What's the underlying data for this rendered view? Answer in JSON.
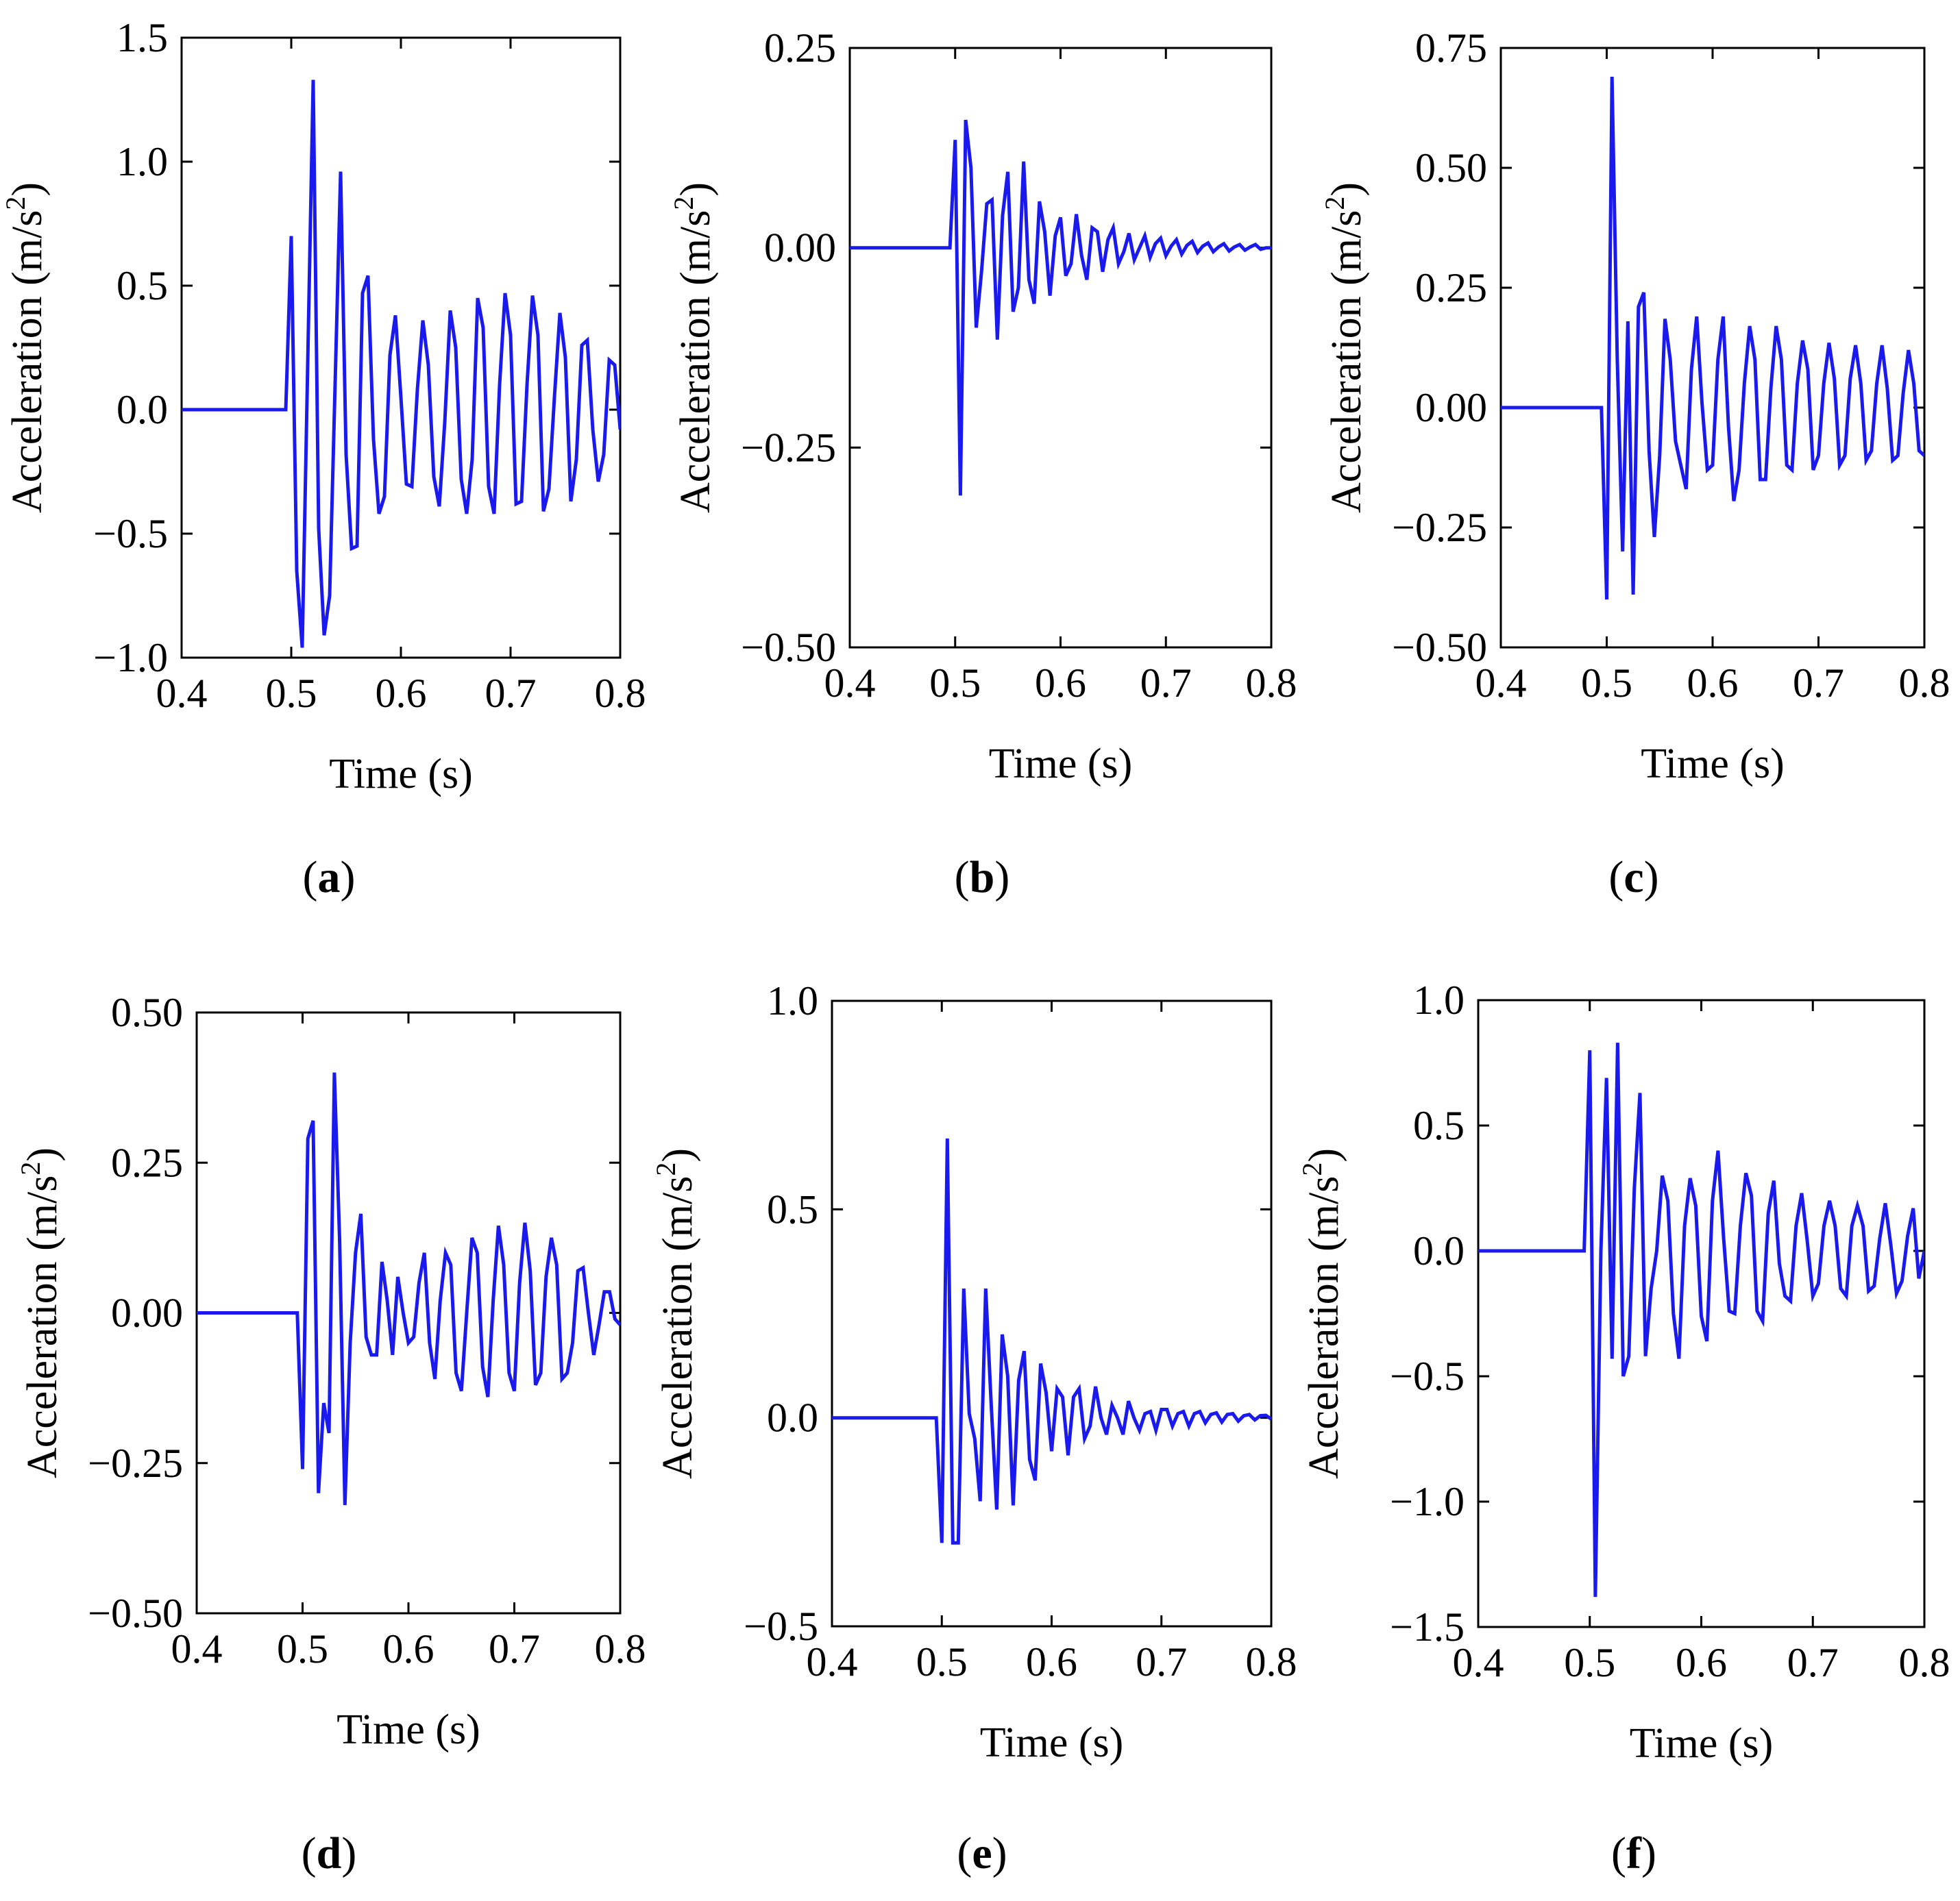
{
  "figure": {
    "line_color": "#1a1aee",
    "axis_color": "#000000",
    "background": "#ffffff"
  },
  "chart_data": [
    {
      "id": "a",
      "type": "line",
      "panel_label": "a",
      "xlabel": "Time (s)",
      "ylabel": "Acceleration (m/s",
      "ylabel_sup": "2",
      "ylabel_tail": ")",
      "xlim": [
        0.4,
        0.8
      ],
      "ylim": [
        -1.0,
        1.5
      ],
      "xticks": [
        0.4,
        0.5,
        0.6,
        0.7,
        0.8
      ],
      "xtick_labels": [
        "0.4",
        "0.5",
        "0.6",
        "0.7",
        "0.8"
      ],
      "yticks": [
        -1.0,
        -0.5,
        0.0,
        0.5,
        1.0,
        1.5
      ],
      "ytick_labels": [
        "−1.0",
        "−0.5",
        "0.0",
        "0.5",
        "1.0",
        "1.5"
      ],
      "series": [
        {
          "name": "acceleration",
          "x": [
            0.4,
            0.495,
            0.5,
            0.505,
            0.51,
            0.52,
            0.525,
            0.53,
            0.535,
            0.545,
            0.55,
            0.555,
            0.56,
            0.565,
            0.57,
            0.575,
            0.58,
            0.585,
            0.59,
            0.595,
            0.6,
            0.605,
            0.61,
            0.615,
            0.62,
            0.625,
            0.63,
            0.635,
            0.64,
            0.645,
            0.65,
            0.655,
            0.66,
            0.665,
            0.67,
            0.675,
            0.68,
            0.685,
            0.69,
            0.695,
            0.7,
            0.705,
            0.71,
            0.715,
            0.72,
            0.725,
            0.73,
            0.735,
            0.74,
            0.745,
            0.75,
            0.755,
            0.76,
            0.765,
            0.77,
            0.775,
            0.78,
            0.785,
            0.79,
            0.795,
            0.8
          ],
          "y": [
            0.0,
            0.0,
            0.7,
            -0.65,
            -0.96,
            1.33,
            -0.48,
            -0.91,
            -0.75,
            0.96,
            -0.18,
            -0.56,
            -0.55,
            0.47,
            0.54,
            -0.12,
            -0.42,
            -0.35,
            0.22,
            0.38,
            0.05,
            -0.3,
            -0.31,
            0.08,
            0.36,
            0.18,
            -0.27,
            -0.39,
            -0.05,
            0.4,
            0.25,
            -0.28,
            -0.42,
            -0.2,
            0.45,
            0.33,
            -0.31,
            -0.42,
            0.1,
            0.47,
            0.3,
            -0.38,
            -0.37,
            0.1,
            0.46,
            0.3,
            -0.41,
            -0.32,
            0.05,
            0.39,
            0.21,
            -0.37,
            -0.2,
            0.26,
            0.28,
            -0.08,
            -0.29,
            -0.18,
            0.2,
            0.18,
            -0.08
          ]
        }
      ]
    },
    {
      "id": "b",
      "type": "line",
      "panel_label": "b",
      "xlabel": "Time (s)",
      "ylabel": "Acceleration (m/s",
      "ylabel_sup": "2",
      "ylabel_tail": ")",
      "xlim": [
        0.4,
        0.8
      ],
      "ylim": [
        -0.5,
        0.25
      ],
      "xticks": [
        0.4,
        0.5,
        0.6,
        0.7,
        0.8
      ],
      "xtick_labels": [
        "0.4",
        "0.5",
        "0.6",
        "0.7",
        "0.8"
      ],
      "yticks": [
        -0.5,
        -0.25,
        0.0,
        0.25
      ],
      "ytick_labels": [
        "−0.50",
        "−0.25",
        "0.00",
        "0.25"
      ],
      "series": [
        {
          "name": "acceleration",
          "x": [
            0.4,
            0.495,
            0.5,
            0.505,
            0.51,
            0.515,
            0.52,
            0.525,
            0.53,
            0.535,
            0.54,
            0.545,
            0.55,
            0.555,
            0.56,
            0.565,
            0.57,
            0.575,
            0.58,
            0.585,
            0.59,
            0.595,
            0.6,
            0.605,
            0.61,
            0.615,
            0.62,
            0.625,
            0.63,
            0.635,
            0.64,
            0.645,
            0.65,
            0.655,
            0.66,
            0.665,
            0.67,
            0.675,
            0.68,
            0.685,
            0.69,
            0.695,
            0.7,
            0.705,
            0.71,
            0.715,
            0.72,
            0.725,
            0.73,
            0.735,
            0.74,
            0.745,
            0.75,
            0.755,
            0.76,
            0.765,
            0.77,
            0.775,
            0.78,
            0.785,
            0.79,
            0.795,
            0.8
          ],
          "y": [
            0.0,
            0.0,
            0.135,
            -0.31,
            0.16,
            0.1,
            -0.1,
            -0.03,
            0.055,
            0.06,
            -0.115,
            0.04,
            0.095,
            -0.08,
            -0.05,
            0.108,
            -0.04,
            -0.07,
            0.058,
            0.02,
            -0.06,
            0.015,
            0.038,
            -0.035,
            -0.02,
            0.042,
            -0.01,
            -0.04,
            0.025,
            0.02,
            -0.03,
            0.01,
            0.025,
            -0.02,
            -0.005,
            0.018,
            -0.015,
            0.0,
            0.015,
            -0.012,
            0.005,
            0.012,
            -0.01,
            0.002,
            0.01,
            -0.008,
            0.003,
            0.008,
            -0.006,
            0.002,
            0.006,
            -0.005,
            0.001,
            0.005,
            -0.004,
            0.001,
            0.004,
            -0.003,
            0.001,
            0.004,
            -0.002,
            0.0,
            0.0
          ]
        }
      ]
    },
    {
      "id": "c",
      "type": "line",
      "panel_label": "c",
      "xlabel": "Time (s)",
      "ylabel": "Acceleration (m/s",
      "ylabel_sup": "2",
      "ylabel_tail": ")",
      "xlim": [
        0.4,
        0.8
      ],
      "ylim": [
        -0.5,
        0.75
      ],
      "xticks": [
        0.4,
        0.5,
        0.6,
        0.7,
        0.8
      ],
      "xtick_labels": [
        "0.4",
        "0.5",
        "0.6",
        "0.7",
        "0.8"
      ],
      "yticks": [
        -0.5,
        -0.25,
        0.0,
        0.25,
        0.5,
        0.75
      ],
      "ytick_labels": [
        "−0.50",
        "−0.25",
        "0.00",
        "0.25",
        "0.50",
        "0.75"
      ],
      "series": [
        {
          "name": "acceleration",
          "x": [
            0.4,
            0.495,
            0.5,
            0.505,
            0.51,
            0.515,
            0.52,
            0.525,
            0.53,
            0.535,
            0.54,
            0.545,
            0.55,
            0.555,
            0.56,
            0.565,
            0.57,
            0.575,
            0.58,
            0.585,
            0.59,
            0.595,
            0.6,
            0.605,
            0.61,
            0.615,
            0.62,
            0.625,
            0.63,
            0.635,
            0.64,
            0.645,
            0.65,
            0.655,
            0.66,
            0.665,
            0.67,
            0.675,
            0.68,
            0.685,
            0.69,
            0.695,
            0.7,
            0.705,
            0.71,
            0.715,
            0.72,
            0.725,
            0.73,
            0.735,
            0.74,
            0.745,
            0.75,
            0.755,
            0.76,
            0.765,
            0.77,
            0.775,
            0.78,
            0.785,
            0.79,
            0.795,
            0.8
          ],
          "y": [
            0.0,
            0.0,
            -0.4,
            0.69,
            0.1,
            -0.3,
            0.18,
            -0.39,
            0.21,
            0.24,
            -0.09,
            -0.27,
            -0.1,
            0.185,
            0.1,
            -0.07,
            -0.12,
            -0.17,
            0.08,
            0.19,
            0.01,
            -0.13,
            -0.12,
            0.1,
            0.19,
            -0.04,
            -0.195,
            -0.13,
            0.05,
            0.17,
            0.1,
            -0.15,
            -0.15,
            0.04,
            0.17,
            0.1,
            -0.12,
            -0.13,
            0.05,
            0.14,
            0.08,
            -0.13,
            -0.1,
            0.05,
            0.135,
            0.06,
            -0.12,
            -0.1,
            0.06,
            0.13,
            0.05,
            -0.11,
            -0.09,
            0.05,
            0.13,
            0.04,
            -0.11,
            -0.1,
            0.03,
            0.12,
            0.05,
            -0.09,
            -0.1
          ]
        }
      ]
    },
    {
      "id": "d",
      "type": "line",
      "panel_label": "d",
      "xlabel": "Time (s)",
      "ylabel": "Acceleration (m/s",
      "ylabel_sup": "2",
      "ylabel_tail": ")",
      "xlim": [
        0.4,
        0.8
      ],
      "ylim": [
        -0.5,
        0.5
      ],
      "xticks": [
        0.4,
        0.5,
        0.6,
        0.7,
        0.8
      ],
      "xtick_labels": [
        "0.4",
        "0.5",
        "0.6",
        "0.7",
        "0.8"
      ],
      "yticks": [
        -0.5,
        -0.25,
        0.0,
        0.25,
        0.5
      ],
      "ytick_labels": [
        "−0.50",
        "−0.25",
        "0.00",
        "0.25",
        "0.50"
      ],
      "series": [
        {
          "name": "acceleration",
          "x": [
            0.4,
            0.495,
            0.5,
            0.505,
            0.51,
            0.515,
            0.52,
            0.525,
            0.53,
            0.535,
            0.54,
            0.545,
            0.55,
            0.555,
            0.56,
            0.565,
            0.57,
            0.575,
            0.58,
            0.585,
            0.59,
            0.595,
            0.6,
            0.605,
            0.61,
            0.615,
            0.62,
            0.625,
            0.63,
            0.635,
            0.64,
            0.645,
            0.65,
            0.655,
            0.66,
            0.665,
            0.67,
            0.675,
            0.68,
            0.685,
            0.69,
            0.695,
            0.7,
            0.705,
            0.71,
            0.715,
            0.72,
            0.725,
            0.73,
            0.735,
            0.74,
            0.745,
            0.75,
            0.755,
            0.76,
            0.765,
            0.77,
            0.775,
            0.78,
            0.785,
            0.79,
            0.795,
            0.8
          ],
          "y": [
            0.0,
            0.0,
            -0.26,
            0.29,
            0.32,
            -0.3,
            -0.15,
            -0.2,
            0.4,
            0.12,
            -0.32,
            -0.05,
            0.1,
            0.165,
            -0.04,
            -0.07,
            -0.07,
            0.085,
            0.02,
            -0.07,
            0.06,
            0.0,
            -0.05,
            -0.04,
            0.05,
            0.1,
            -0.05,
            -0.11,
            0.02,
            0.1,
            0.08,
            -0.1,
            -0.13,
            0.0,
            0.125,
            0.1,
            -0.09,
            -0.14,
            0.02,
            0.145,
            0.08,
            -0.1,
            -0.13,
            0.05,
            0.15,
            0.07,
            -0.12,
            -0.1,
            0.06,
            0.125,
            0.08,
            -0.11,
            -0.1,
            -0.05,
            0.07,
            0.075,
            0.0,
            -0.07,
            -0.02,
            0.035,
            0.035,
            -0.01,
            -0.02
          ]
        }
      ]
    },
    {
      "id": "e",
      "type": "line",
      "panel_label": "e",
      "xlabel": "Time (s)",
      "ylabel": "Acceleration (m/s",
      "ylabel_sup": "2",
      "ylabel_tail": ")",
      "xlim": [
        0.4,
        0.8
      ],
      "ylim": [
        -0.5,
        1.0
      ],
      "xticks": [
        0.4,
        0.5,
        0.6,
        0.7,
        0.8
      ],
      "xtick_labels": [
        "0.4",
        "0.5",
        "0.6",
        "0.7",
        "0.8"
      ],
      "yticks": [
        -0.5,
        0.0,
        0.5,
        1.0
      ],
      "ytick_labels": [
        "−0.5",
        "0.0",
        "0.5",
        "1.0"
      ],
      "series": [
        {
          "name": "acceleration",
          "x": [
            0.4,
            0.495,
            0.5,
            0.505,
            0.51,
            0.515,
            0.52,
            0.525,
            0.53,
            0.535,
            0.54,
            0.545,
            0.55,
            0.555,
            0.56,
            0.565,
            0.57,
            0.575,
            0.58,
            0.585,
            0.59,
            0.595,
            0.6,
            0.605,
            0.61,
            0.615,
            0.62,
            0.625,
            0.63,
            0.635,
            0.64,
            0.645,
            0.65,
            0.655,
            0.66,
            0.665,
            0.67,
            0.675,
            0.68,
            0.685,
            0.69,
            0.695,
            0.7,
            0.705,
            0.71,
            0.715,
            0.72,
            0.725,
            0.73,
            0.735,
            0.74,
            0.745,
            0.75,
            0.755,
            0.76,
            0.765,
            0.77,
            0.775,
            0.78,
            0.785,
            0.79,
            0.795,
            0.8
          ],
          "y": [
            0.0,
            0.0,
            -0.3,
            0.67,
            -0.3,
            -0.3,
            0.31,
            0.01,
            -0.05,
            -0.2,
            0.31,
            0.03,
            -0.22,
            0.2,
            0.1,
            -0.21,
            0.09,
            0.16,
            -0.1,
            -0.15,
            0.13,
            0.06,
            -0.08,
            0.07,
            0.05,
            -0.09,
            0.05,
            0.07,
            -0.05,
            -0.02,
            0.075,
            0.0,
            -0.04,
            0.03,
            0.0,
            -0.04,
            0.04,
            0.0,
            -0.03,
            0.01,
            0.015,
            -0.03,
            0.02,
            0.02,
            -0.02,
            0.01,
            0.015,
            -0.02,
            0.01,
            0.015,
            -0.012,
            0.008,
            0.012,
            -0.01,
            0.008,
            0.01,
            -0.008,
            0.005,
            0.008,
            -0.005,
            0.005,
            0.006,
            -0.003
          ]
        }
      ]
    },
    {
      "id": "f",
      "type": "line",
      "panel_label": "f",
      "xlabel": "Time (s)",
      "ylabel": "Acceleration (m/s",
      "ylabel_sup": "2",
      "ylabel_tail": ")",
      "xlim": [
        0.4,
        0.8
      ],
      "ylim": [
        -1.5,
        1.0
      ],
      "xticks": [
        0.4,
        0.5,
        0.6,
        0.7,
        0.8
      ],
      "xtick_labels": [
        "0.4",
        "0.5",
        "0.6",
        "0.7",
        "0.8"
      ],
      "yticks": [
        -1.5,
        -1.0,
        -0.5,
        0.0,
        0.5,
        1.0
      ],
      "ytick_labels": [
        "−1.5",
        "−1.0",
        "−0.5",
        "0.0",
        "0.5",
        "1.0"
      ],
      "series": [
        {
          "name": "acceleration",
          "x": [
            0.4,
            0.495,
            0.5,
            0.505,
            0.51,
            0.515,
            0.52,
            0.525,
            0.53,
            0.535,
            0.54,
            0.545,
            0.55,
            0.555,
            0.56,
            0.565,
            0.57,
            0.575,
            0.58,
            0.585,
            0.59,
            0.595,
            0.6,
            0.605,
            0.61,
            0.615,
            0.62,
            0.625,
            0.63,
            0.635,
            0.64,
            0.645,
            0.65,
            0.655,
            0.66,
            0.665,
            0.67,
            0.675,
            0.68,
            0.685,
            0.69,
            0.695,
            0.7,
            0.705,
            0.71,
            0.715,
            0.72,
            0.725,
            0.73,
            0.735,
            0.74,
            0.745,
            0.75,
            0.755,
            0.76,
            0.765,
            0.77,
            0.775,
            0.78,
            0.785,
            0.79,
            0.795,
            0.8
          ],
          "y": [
            0.0,
            0.0,
            0.8,
            -1.38,
            0.0,
            0.69,
            -0.43,
            0.83,
            -0.5,
            -0.42,
            0.25,
            0.63,
            -0.42,
            -0.15,
            0.0,
            0.3,
            0.2,
            -0.25,
            -0.43,
            0.1,
            0.29,
            0.18,
            -0.26,
            -0.36,
            0.2,
            0.4,
            0.05,
            -0.24,
            -0.25,
            0.1,
            0.31,
            0.22,
            -0.24,
            -0.28,
            0.15,
            0.28,
            -0.05,
            -0.18,
            -0.2,
            0.1,
            0.23,
            0.04,
            -0.18,
            -0.13,
            0.1,
            0.2,
            0.1,
            -0.15,
            -0.18,
            0.1,
            0.18,
            0.1,
            -0.16,
            -0.14,
            0.05,
            0.19,
            0.02,
            -0.17,
            -0.12,
            0.06,
            0.17,
            -0.11,
            0.0
          ]
        }
      ]
    }
  ]
}
